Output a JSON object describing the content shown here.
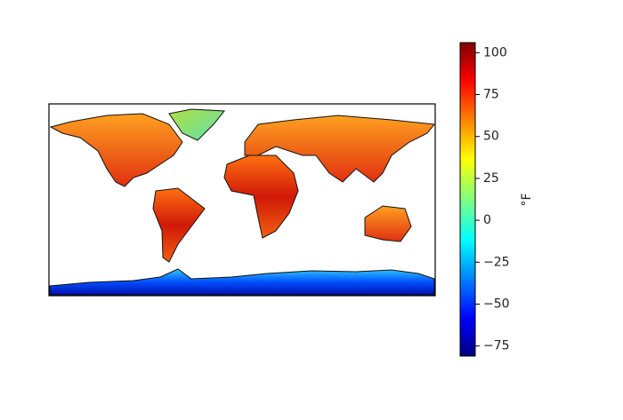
{
  "chart_data": {
    "type": "map",
    "colorbar_label": "°F",
    "colormap": "jet",
    "clim": [
      -81,
      106
    ],
    "cticks": [
      {
        "value": -75,
        "label": "−75"
      },
      {
        "value": -50,
        "label": "−50"
      },
      {
        "value": -25,
        "label": "−25"
      },
      0,
      25,
      50,
      75,
      100
    ]
  }
}
